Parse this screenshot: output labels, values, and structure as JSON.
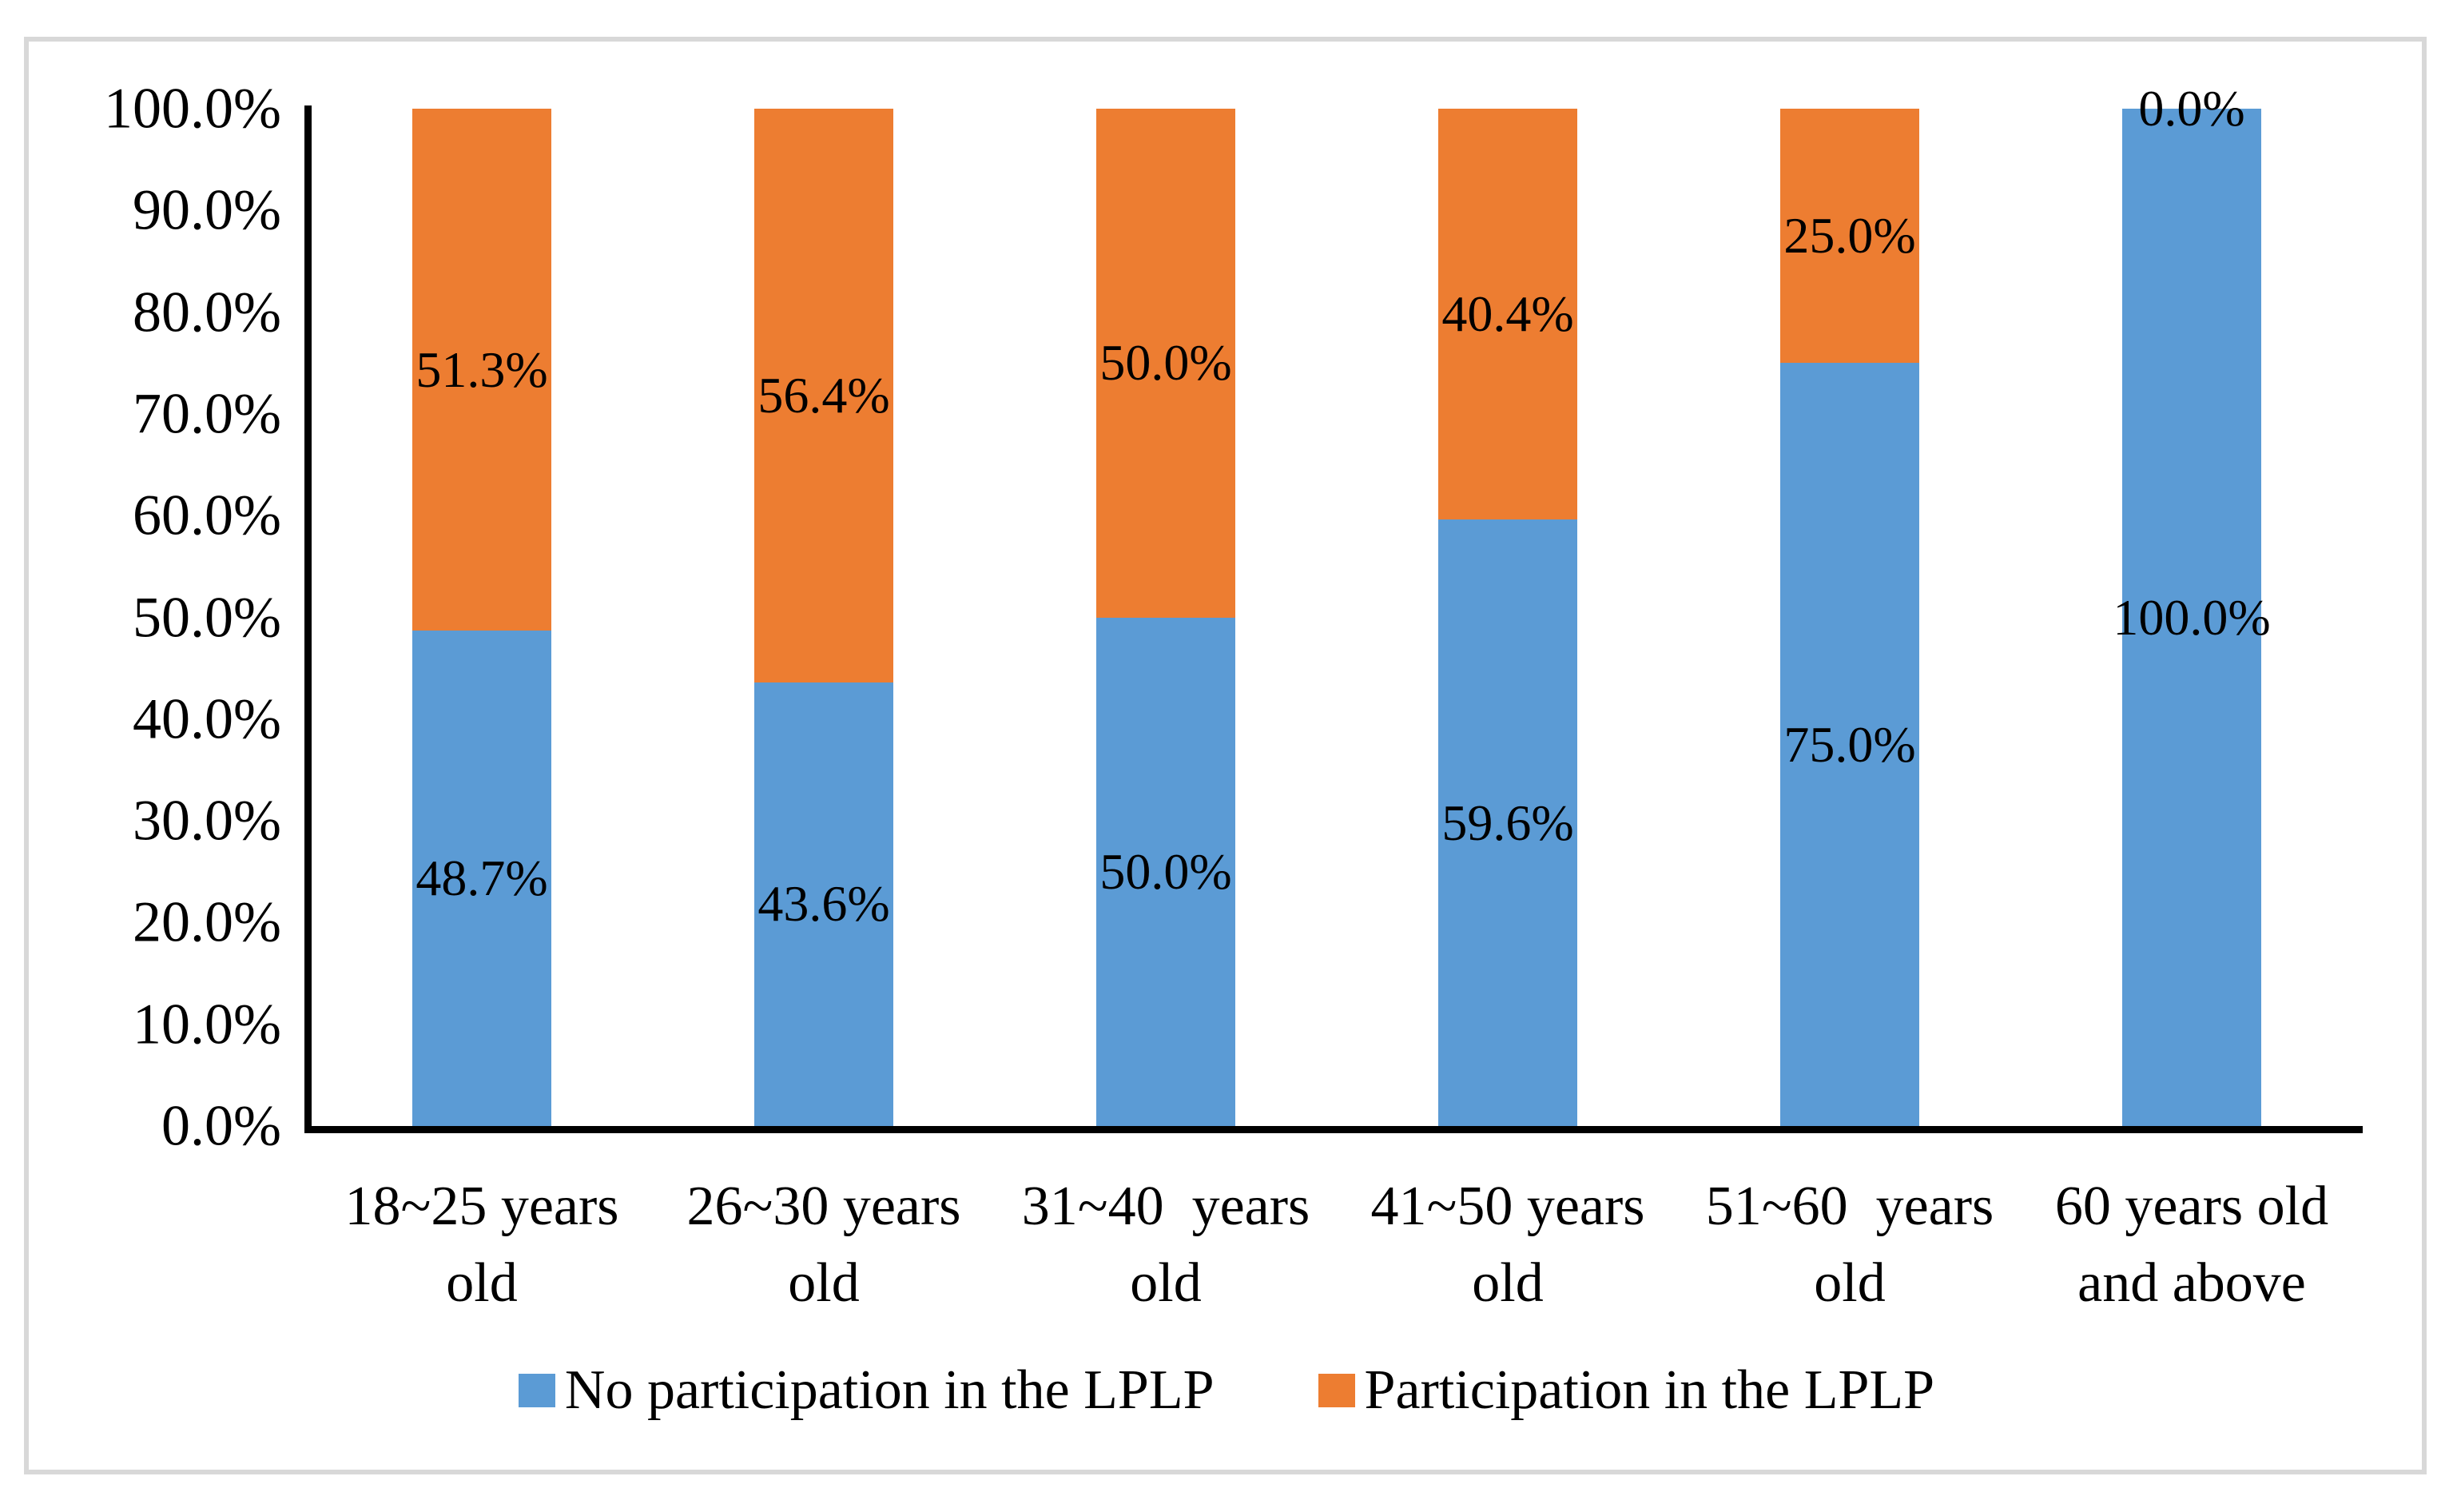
{
  "chart_data": {
    "type": "bar",
    "stacked": true,
    "orientation": "vertical",
    "title": "",
    "xlabel": "",
    "ylabel": "",
    "categories": [
      "18~25 years old",
      "26~30 years old",
      "31~40 years old",
      "41~50 years old",
      "51~60 years old",
      "60 years old and above"
    ],
    "category_label_lines": [
      [
        "18~25 years",
        "old"
      ],
      [
        "26~30 years",
        "old"
      ],
      [
        "31~40  years",
        "old"
      ],
      [
        "41~50 years",
        "old"
      ],
      [
        "51~60  years",
        "old"
      ],
      [
        "60 years old",
        "and above"
      ]
    ],
    "series": [
      {
        "name": "No participation in the LPLP",
        "color": "#5B9BD5",
        "values": [
          48.7,
          43.6,
          50.0,
          59.6,
          75.0,
          100.0
        ],
        "data_labels": [
          "48.7%",
          "43.6%",
          "50.0%",
          "59.6%",
          "75.0%",
          "100.0%"
        ]
      },
      {
        "name": "Participation in the LPLP",
        "color": "#ED7D31",
        "values": [
          51.3,
          56.4,
          50.0,
          40.4,
          25.0,
          0.0
        ],
        "data_labels": [
          "51.3%",
          "56.4%",
          "50.0%",
          "40.4%",
          "25.0%",
          "0.0%"
        ]
      }
    ],
    "y_axis": {
      "min": 0,
      "max": 100,
      "step": 10,
      "tick_labels": [
        "0.0%",
        "10.0%",
        "20.0%",
        "30.0%",
        "40.0%",
        "50.0%",
        "60.0%",
        "70.0%",
        "80.0%",
        "90.0%",
        "100.0%"
      ]
    },
    "legend_position": "bottom",
    "grid": false,
    "axis_color": "#000000",
    "frame_color": "#D8D8D8",
    "label_color": "#000000"
  }
}
